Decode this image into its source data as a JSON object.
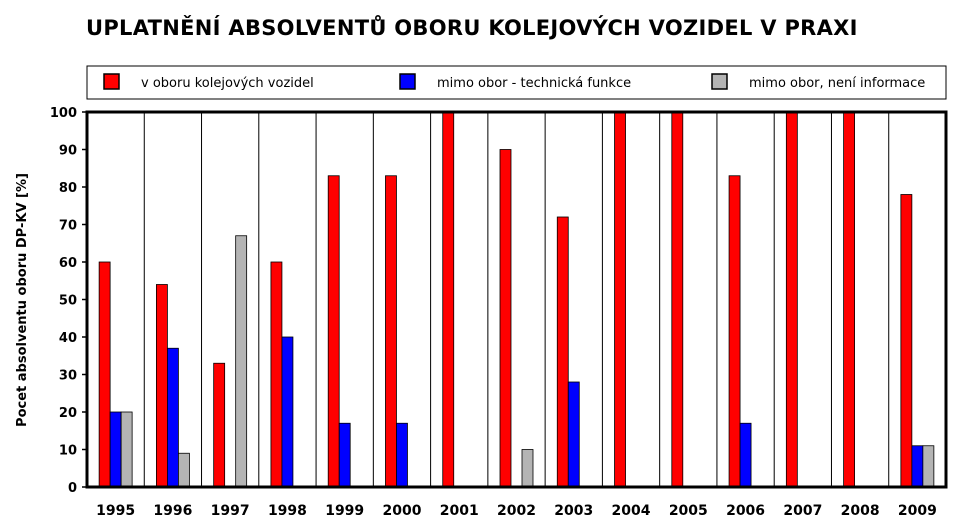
{
  "chart_data": {
    "type": "bar",
    "title": "UPLATNĚNÍ ABSOLVENTŮ OBORU KOLEJOVÝCH VOZIDEL V PRAXI",
    "xlabel": "",
    "ylabel": "Pocet absolventu oboru DP-KV [%]",
    "ylim": [
      0,
      100
    ],
    "yticks": [
      0,
      10,
      20,
      30,
      40,
      50,
      60,
      70,
      80,
      90,
      100
    ],
    "grid": "vertical separators between categories",
    "legend_position": "top",
    "categories": [
      "1995",
      "1996",
      "1997",
      "1998",
      "1999",
      "2000",
      "2001",
      "2002",
      "2003",
      "2004",
      "2005",
      "2006",
      "2007",
      "2008",
      "2009"
    ],
    "series": [
      {
        "name": "v oboru kolejových vozidel",
        "color": "#ff0000",
        "values": [
          60,
          54,
          33,
          60,
          83,
          83,
          100,
          90,
          72,
          100,
          100,
          83,
          100,
          100,
          78
        ]
      },
      {
        "name": "mimo obor - technická funkce",
        "color": "#0000ff",
        "values": [
          20,
          37,
          0,
          40,
          17,
          17,
          0,
          0,
          28,
          0,
          0,
          17,
          0,
          0,
          11
        ]
      },
      {
        "name": "mimo obor, není informace",
        "color": "#b4b4b4",
        "values": [
          20,
          9,
          67,
          0,
          0,
          0,
          0,
          10,
          0,
          0,
          0,
          0,
          0,
          0,
          11
        ]
      }
    ]
  }
}
